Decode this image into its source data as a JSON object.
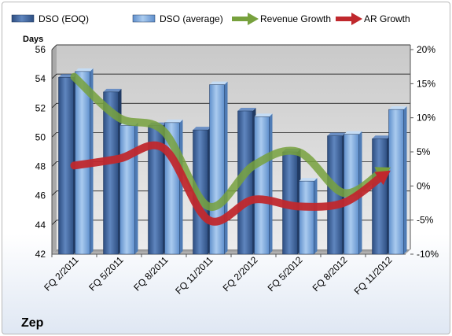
{
  "chart_data": {
    "type": "bar",
    "categories": [
      "FQ 2/2011",
      "FQ 5/2011",
      "FQ 8/2011",
      "FQ 11/2011",
      "FQ 2/2012",
      "FQ 5/2012",
      "FQ 8/2012",
      "FQ 11/2012"
    ],
    "series": [
      {
        "name": "DSO (EOQ)",
        "kind": "bar",
        "axis": "left",
        "color": "#4a6fa8",
        "values": [
          54.1,
          53.1,
          50.8,
          50.5,
          51.8,
          49.0,
          50.1,
          49.9
        ]
      },
      {
        "name": "DSO (average)",
        "kind": "bar",
        "axis": "left",
        "color": "#8db4e2",
        "values": [
          54.5,
          50.8,
          51.0,
          53.6,
          51.4,
          47.0,
          50.2,
          51.9
        ]
      },
      {
        "name": "Revenue Growth",
        "kind": "line",
        "axis": "right",
        "color": "#77a13d",
        "values": [
          0.16,
          0.1,
          0.08,
          -0.03,
          0.03,
          0.05,
          -0.01,
          0.025
        ]
      },
      {
        "name": "AR Growth",
        "kind": "line",
        "axis": "right",
        "color": "#c0282d",
        "values": [
          0.03,
          0.04,
          0.055,
          -0.05,
          -0.02,
          -0.03,
          -0.025,
          0.02
        ]
      }
    ],
    "ylabel": "Days",
    "ylim": [
      42,
      56
    ],
    "yticks": [
      "42",
      "44",
      "46",
      "48",
      "50",
      "52",
      "54",
      "56"
    ],
    "y2lim": [
      -0.1,
      0.2
    ],
    "y2ticks": [
      "-10%",
      "-5%",
      "0%",
      "5%",
      "10%",
      "15%",
      "20%"
    ],
    "legend_position": "top",
    "grid": true,
    "company": "Zep"
  }
}
